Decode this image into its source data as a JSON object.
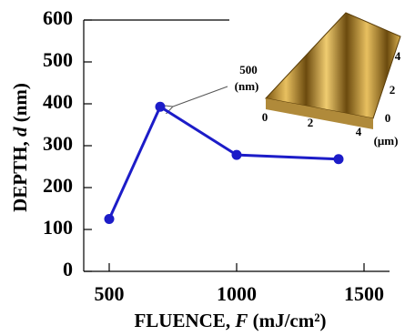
{
  "chart_data": {
    "type": "line",
    "x_label": [
      "FLUENCE, ",
      "F",
      " (mJ/cm²)"
    ],
    "y_label": [
      "DEPTH, ",
      "d",
      " (nm)"
    ],
    "x": [
      500,
      700,
      1000,
      1400
    ],
    "series": [
      {
        "color": "#1c1cc8",
        "values": [
          125,
          393,
          278,
          268
        ]
      }
    ],
    "xlim": [
      400,
      1600
    ],
    "xticks": [
      500,
      1000,
      1500
    ],
    "ylim": [
      0,
      600
    ],
    "yticks": [
      0,
      100,
      200,
      300,
      400,
      500,
      600
    ],
    "inset": {
      "z_label": [
        "500",
        "(nm)"
      ],
      "x_ticks": [
        "0",
        "2",
        "4"
      ],
      "y_ticks": [
        "0",
        "2",
        "4"
      ],
      "unit": "(μm)"
    }
  }
}
